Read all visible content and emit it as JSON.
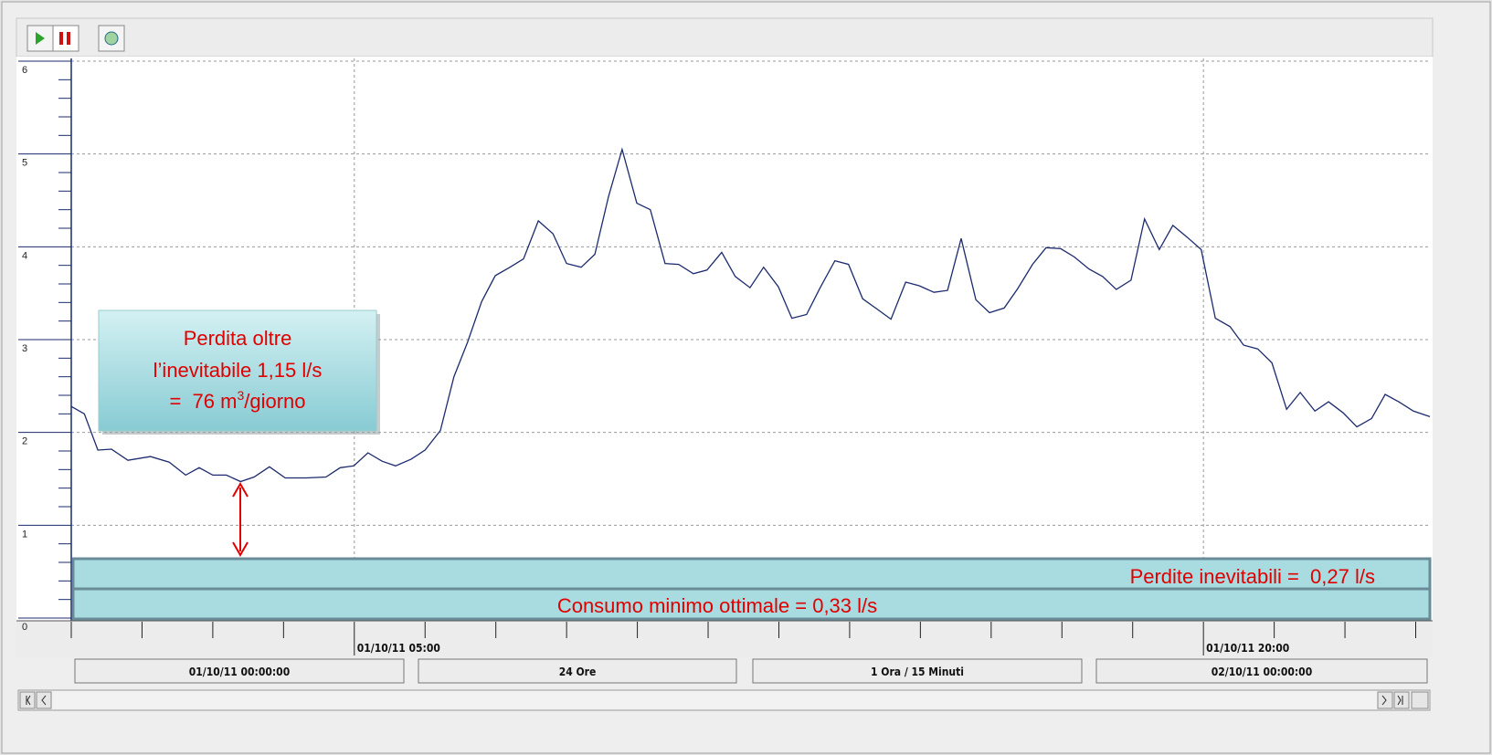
{
  "chart_data": {
    "type": "line",
    "x": [
      0,
      0.23,
      0.47,
      0.71,
      1.0,
      1.4,
      1.73,
      2.02,
      2.26,
      2.5,
      2.74,
      2.99,
      3.23,
      3.5,
      3.78,
      4.15,
      4.5,
      4.75,
      4.99,
      5.24,
      5.49,
      5.73,
      6.0,
      6.25,
      6.52,
      6.76,
      7.0,
      7.25,
      7.49,
      7.75,
      7.99,
      8.25,
      8.51,
      8.75,
      9.01,
      9.25,
      9.49,
      9.73,
      9.99,
      10.23,
      10.49,
      10.73,
      10.99,
      11.23,
      11.49,
      11.73,
      11.99,
      12.23,
      12.49,
      12.73,
      12.99,
      13.23,
      13.49,
      13.73,
      13.98,
      14.23,
      14.48,
      14.74,
      14.98,
      15.24,
      15.48,
      15.72,
      15.98,
      16.22,
      16.48,
      16.72,
      16.98,
      17.22,
      17.48,
      17.72,
      17.98,
      18.22,
      18.46,
      18.72,
      18.96,
      19.22,
      19.46,
      19.72,
      19.96,
      20.21,
      20.47,
      20.71,
      20.96,
      21.21,
      21.47,
      21.71,
      21.97,
      22.21,
      22.47,
      22.71,
      22.97,
      23.21,
      23.45,
      23.71,
      24.0
    ],
    "series": [
      {
        "color": "#1c2a6e",
        "values": [
          2.28,
          2.2,
          1.81,
          1.82,
          1.7,
          1.74,
          1.68,
          1.54,
          1.62,
          1.54,
          1.54,
          1.47,
          1.52,
          1.63,
          1.51,
          1.51,
          1.52,
          1.62,
          1.64,
          1.78,
          1.69,
          1.64,
          1.71,
          1.81,
          2.02,
          2.6,
          2.97,
          3.41,
          3.69,
          3.78,
          3.87,
          4.28,
          4.14,
          3.82,
          3.78,
          3.92,
          4.54,
          5.05,
          4.47,
          4.4,
          3.82,
          3.81,
          3.71,
          3.75,
          3.94,
          3.68,
          3.56,
          3.78,
          3.57,
          3.23,
          3.27,
          3.56,
          3.85,
          3.81,
          3.44,
          3.33,
          3.22,
          3.62,
          3.58,
          3.51,
          3.53,
          4.09,
          3.43,
          3.29,
          3.34,
          3.55,
          3.81,
          3.99,
          3.98,
          3.89,
          3.76,
          3.68,
          3.54,
          3.64,
          4.3,
          3.97,
          4.23,
          4.1,
          3.97,
          3.23,
          3.14,
          2.94,
          2.9,
          2.75,
          2.25,
          2.43,
          2.23,
          2.33,
          2.21,
          2.06,
          2.15,
          2.41,
          2.33,
          2.23,
          2.17
        ]
      }
    ],
    "xlim": [
      0,
      24
    ],
    "xticks": [
      {
        "value": 5,
        "label": "01/10/11 05:00"
      },
      {
        "value": 20,
        "label": "01/10/11 20:00"
      }
    ],
    "xminorticks": [
      0,
      1.25,
      2.5,
      3.75,
      6.25,
      7.5,
      8.75,
      10,
      11.25,
      12.5,
      13.75,
      15,
      16.25,
      17.5,
      18.75,
      21.25,
      22.5,
      23.75
    ],
    "ylim": [
      0,
      6
    ],
    "yticks": [
      0,
      1,
      2,
      3,
      4,
      5,
      6
    ],
    "yminorticks": [
      0.2,
      0.4,
      0.6,
      0.8,
      1.2,
      1.4,
      1.6,
      1.8,
      2.2,
      2.4,
      2.6,
      2.8,
      3.2,
      3.4,
      3.6,
      3.8,
      4.2,
      4.4,
      4.6,
      4.8,
      5.2,
      5.4,
      5.6,
      5.8
    ],
    "grid": true,
    "annotations": {
      "box": {
        "lines": [
          "Perdita oltre",
          "l’inevitabile 1,15 l/s"
        ],
        "last_line": [
          "=  76 m",
          "3",
          "/giorno"
        ]
      },
      "band_upper": "Perdite inevitabili =  0,27 l/s",
      "band_lower": "Consumo minimo ottimale = 0,33 l/s"
    }
  },
  "footer": {
    "fields": [
      "01/10/11 00:00:00",
      "24 Ore",
      "1 Ora / 15 Minuti",
      "02/10/11 00:00:00"
    ]
  }
}
